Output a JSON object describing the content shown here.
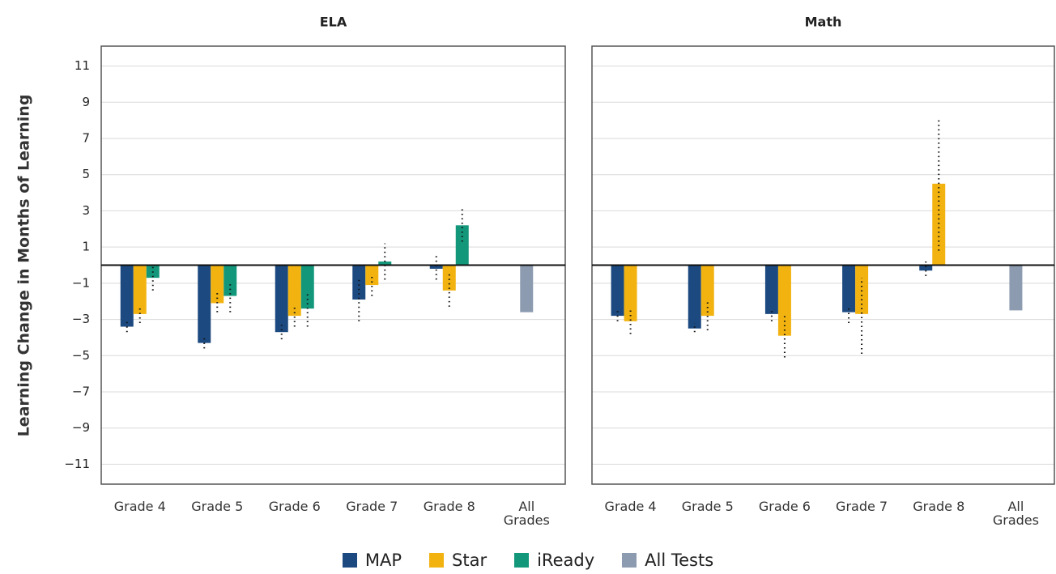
{
  "chart_data": [
    {
      "type": "bar",
      "title": "ELA",
      "y_label": "Learning Change in Months of Learning",
      "categories": [
        "Grade 4",
        "Grade 5",
        "Grade 6",
        "Grade 7",
        "Grade 8",
        "All Grades"
      ],
      "ylim": [
        -12.1,
        12.1
      ],
      "yticks": [
        {
          "value": 11,
          "label": "11"
        },
        {
          "value": 9,
          "label": "9"
        },
        {
          "value": 7,
          "label": "7"
        },
        {
          "value": 5,
          "label": "5"
        },
        {
          "value": 3,
          "label": "3"
        },
        {
          "value": 1,
          "label": "1"
        },
        {
          "value": -1,
          "label": "−1"
        },
        {
          "value": -3,
          "label": "−3"
        },
        {
          "value": -5,
          "label": "−5"
        },
        {
          "value": -7,
          "label": "−7"
        },
        {
          "value": -9,
          "label": "−9"
        },
        {
          "value": -11,
          "label": "−11"
        }
      ],
      "grid": true,
      "series": [
        {
          "name": "MAP",
          "color": "#1c4a80",
          "values": [
            -3.4,
            -4.3,
            -3.7,
            -1.9,
            -0.2,
            null
          ],
          "ci_low": [
            -3.7,
            -4.6,
            -4.1,
            -3.1,
            -0.8,
            null
          ],
          "ci_high": [
            -3.1,
            -4.0,
            -3.3,
            -0.8,
            0.6,
            null
          ]
        },
        {
          "name": "Star",
          "color": "#f2b311",
          "values": [
            -2.7,
            -2.1,
            -2.8,
            -1.1,
            -1.4,
            null
          ],
          "ci_low": [
            -3.2,
            -2.6,
            -3.4,
            -1.7,
            -2.3,
            null
          ],
          "ci_high": [
            -2.3,
            -1.5,
            -2.3,
            -0.5,
            -0.4,
            null
          ]
        },
        {
          "name": "iReady",
          "color": "#13977b",
          "values": [
            -0.7,
            -1.7,
            -2.4,
            0.2,
            2.2,
            null
          ],
          "ci_low": [
            -1.4,
            -2.6,
            -3.4,
            -0.8,
            1.3,
            null
          ],
          "ci_high": [
            -0.1,
            -1.0,
            -1.5,
            1.2,
            3.1,
            null
          ]
        },
        {
          "name": "All Tests",
          "color": "#8d9bb0",
          "values": [
            null,
            null,
            null,
            null,
            null,
            -2.6
          ]
        }
      ]
    },
    {
      "type": "bar",
      "title": "Math",
      "categories": [
        "Grade 4",
        "Grade 5",
        "Grade 6",
        "Grade 7",
        "Grade 8",
        "All Grades"
      ],
      "grid": true,
      "series": [
        {
          "name": "MAP",
          "color": "#1c4a80",
          "values": [
            -2.8,
            -3.5,
            -2.7,
            -2.6,
            -0.3,
            null
          ],
          "ci_low": [
            -3.1,
            -3.7,
            -3.1,
            -3.2,
            -0.6,
            null
          ],
          "ci_high": [
            -2.5,
            -3.2,
            -2.4,
            -2.3,
            0.2,
            null
          ]
        },
        {
          "name": "Star",
          "color": "#f2b311",
          "values": [
            -3.1,
            -2.8,
            -3.9,
            -2.7,
            4.5,
            null
          ],
          "ci_low": [
            -3.8,
            -3.6,
            -5.1,
            -4.9,
            0.8,
            null
          ],
          "ci_high": [
            -2.4,
            -2.0,
            -2.7,
            -0.7,
            8.1,
            null
          ]
        },
        {
          "name": "iReady",
          "color": "#13977b",
          "values": [
            null,
            null,
            null,
            null,
            null,
            null
          ]
        },
        {
          "name": "All Tests",
          "color": "#8d9bb0",
          "values": [
            null,
            null,
            null,
            null,
            null,
            -2.5
          ]
        }
      ]
    }
  ]
}
